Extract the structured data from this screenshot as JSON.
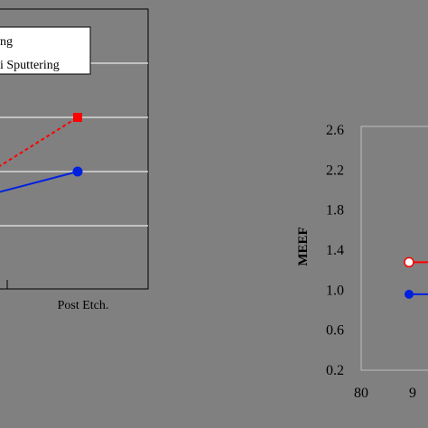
{
  "colors": {
    "background": "#808080",
    "plot_area": "#808080",
    "gridline": "#d8d8d8",
    "legend_bg": "#ffffff",
    "red_series": "#ff0000",
    "blue_series": "#0020e0",
    "axis": "#000000"
  },
  "chart_data": [
    {
      "type": "line",
      "title": "",
      "xlabel": "",
      "ylabel": "",
      "categories": [
        "",
        "Post Etch."
      ],
      "legend": {
        "placement": "top-left",
        "entries": [
          "ng",
          "i Sputtering"
        ]
      },
      "grid": true,
      "series": [
        {
          "color": "#ff0000",
          "style": "dashed",
          "marker": "square",
          "values": [
            null,
            3.0
          ]
        },
        {
          "color": "#0020e0",
          "style": "solid",
          "marker": "circle",
          "values": [
            null,
            2.0
          ]
        }
      ],
      "ylim": [
        0,
        5
      ]
    },
    {
      "type": "line",
      "title": "",
      "xlabel": "",
      "ylabel": "MEEF",
      "x_ticks": [
        "80",
        "9"
      ],
      "y_ticks": [
        "2.6",
        "2.2",
        "1.8",
        "1.4",
        "1.0",
        "0.6",
        "0.2"
      ],
      "ylim": [
        0.2,
        2.6
      ],
      "xlim": [
        80,
        100
      ],
      "grid": false,
      "series": [
        {
          "color": "#ff0000",
          "marker": "open-circle",
          "points": [
            [
              90,
              1.27
            ]
          ]
        },
        {
          "color": "#0020e0",
          "marker": "circle",
          "points": [
            [
              90,
              0.95
            ]
          ]
        }
      ]
    }
  ]
}
